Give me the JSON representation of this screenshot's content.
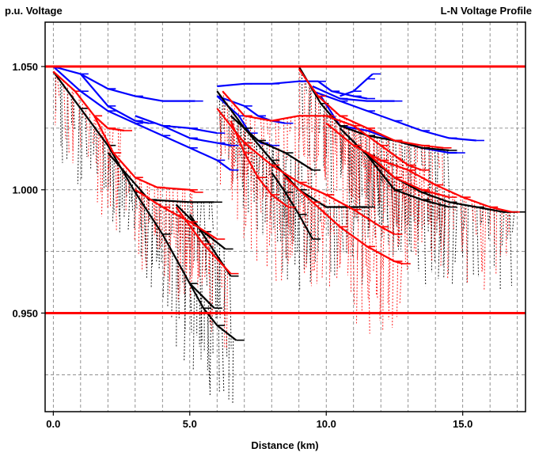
{
  "chart_data": {
    "type": "line",
    "title": "L-N Voltage Profile",
    "ylabel": "p.u. Voltage",
    "xlabel": "Distance (km)",
    "xlim": [
      -0.3,
      17.3
    ],
    "ylim": [
      0.91,
      1.068
    ],
    "x_ticks": [
      {
        "value": 0,
        "label": "0.0"
      },
      {
        "value": 5,
        "label": "5.0"
      },
      {
        "value": 10,
        "label": "10.0"
      },
      {
        "value": 15,
        "label": "15.0"
      }
    ],
    "y_ticks": [
      {
        "value": 0.95,
        "label": "0.950"
      },
      {
        "value": 1.0,
        "label": "1.000"
      },
      {
        "value": 1.05,
        "label": "1.050"
      }
    ],
    "grid": true,
    "limit_lines": [
      {
        "value": 1.05,
        "color": "#ff0000"
      },
      {
        "value": 0.95,
        "color": "#ff0000"
      }
    ],
    "series": [
      {
        "color": "#000000",
        "style": "solid",
        "points": [
          [
            0.0,
            1.048
          ],
          [
            1.0,
            1.033
          ],
          [
            2.0,
            1.018
          ],
          [
            3.0,
            0.999
          ],
          [
            4.0,
            0.982
          ],
          [
            5.0,
            0.962
          ],
          [
            5.5,
            0.952
          ],
          [
            6.0,
            0.945
          ],
          [
            6.7,
            0.939
          ]
        ]
      },
      {
        "color": "#000000",
        "style": "solid",
        "points": [
          [
            2.0,
            1.015
          ],
          [
            3.5,
            0.996
          ],
          [
            5.0,
            0.995
          ],
          [
            5.9,
            0.995
          ]
        ]
      },
      {
        "color": "#000000",
        "style": "solid",
        "points": [
          [
            4.5,
            0.994
          ],
          [
            5.5,
            0.983
          ],
          [
            6.3,
            0.976
          ]
        ]
      },
      {
        "color": "#000000",
        "style": "solid",
        "points": [
          [
            5.0,
            0.99
          ],
          [
            6.5,
            0.965
          ]
        ]
      },
      {
        "color": "#000000",
        "style": "solid",
        "points": [
          [
            5.0,
            0.962
          ],
          [
            5.9,
            0.952
          ]
        ]
      },
      {
        "color": "#ff0000",
        "style": "solid",
        "points": [
          [
            0.0,
            1.048
          ],
          [
            0.8,
            1.04
          ],
          [
            1.5,
            1.03
          ],
          [
            2.0,
            1.025
          ],
          [
            2.6,
            1.024
          ]
        ]
      },
      {
        "color": "#ff0000",
        "style": "solid",
        "points": [
          [
            1.5,
            1.03
          ],
          [
            2.2,
            1.015
          ],
          [
            3.0,
            1.005
          ],
          [
            3.8,
            1.001
          ],
          [
            5.0,
            1.0
          ],
          [
            5.2,
            0.999
          ]
        ]
      },
      {
        "color": "#ff0000",
        "style": "solid",
        "points": [
          [
            3.0,
            1.0
          ],
          [
            4.0,
            0.993
          ],
          [
            5.0,
            0.987
          ],
          [
            6.0,
            0.98
          ]
        ]
      },
      {
        "color": "#ff0000",
        "style": "solid",
        "points": [
          [
            4.5,
            0.993
          ],
          [
            5.5,
            0.978
          ],
          [
            6.5,
            0.966
          ]
        ]
      },
      {
        "color": "#0000ff",
        "style": "solid",
        "points": [
          [
            0.0,
            1.05
          ],
          [
            1.0,
            1.047
          ],
          [
            2.0,
            1.041
          ],
          [
            3.0,
            1.038
          ],
          [
            4.0,
            1.036
          ],
          [
            5.2,
            1.036
          ]
        ]
      },
      {
        "color": "#0000ff",
        "style": "solid",
        "points": [
          [
            1.0,
            1.047
          ],
          [
            2.0,
            1.034
          ],
          [
            3.0,
            1.028
          ],
          [
            3.5,
            1.027
          ]
        ]
      },
      {
        "color": "#0000ff",
        "style": "solid",
        "points": [
          [
            0.0,
            1.05
          ],
          [
            1.0,
            1.04
          ],
          [
            2.0,
            1.032
          ],
          [
            3.0,
            1.027
          ],
          [
            4.0,
            1.022
          ],
          [
            5.0,
            1.017
          ],
          [
            6.0,
            1.012
          ],
          [
            6.5,
            1.008
          ]
        ]
      },
      {
        "color": "#0000ff",
        "style": "solid",
        "points": [
          [
            3.0,
            1.03
          ],
          [
            4.0,
            1.026
          ],
          [
            5.0,
            1.025
          ],
          [
            6.0,
            1.023
          ]
        ]
      },
      {
        "color": "#0000ff",
        "style": "solid",
        "points": [
          [
            4.0,
            1.026
          ],
          [
            5.0,
            1.021
          ],
          [
            6.0,
            1.019
          ],
          [
            6.5,
            1.018
          ]
        ]
      },
      {
        "color": "#0000ff",
        "style": "solid",
        "points": [
          [
            6.0,
            1.042
          ],
          [
            7.0,
            1.043
          ],
          [
            8.0,
            1.043
          ],
          [
            9.0,
            1.044
          ],
          [
            9.7,
            1.044
          ],
          [
            10.2,
            1.04
          ],
          [
            11.0,
            1.038
          ],
          [
            11.5,
            1.037
          ]
        ]
      },
      {
        "color": "#0000ff",
        "style": "solid",
        "points": [
          [
            9.5,
            1.042
          ],
          [
            10.5,
            1.037
          ],
          [
            11.5,
            1.036
          ],
          [
            12.5,
            1.036
          ]
        ]
      },
      {
        "color": "#0000ff",
        "style": "solid",
        "points": [
          [
            9.5,
            1.04
          ],
          [
            10.5,
            1.036
          ],
          [
            11.5,
            1.032
          ],
          [
            12.5,
            1.028
          ],
          [
            13.5,
            1.024
          ],
          [
            14.5,
            1.021
          ],
          [
            15.5,
            1.02
          ]
        ]
      },
      {
        "color": "#0000ff",
        "style": "solid",
        "points": [
          [
            9.8,
            1.038
          ],
          [
            10.5,
            1.026
          ],
          [
            11.5,
            1.024
          ],
          [
            12.5,
            1.02
          ],
          [
            13.5,
            1.017
          ],
          [
            14.5,
            1.015
          ],
          [
            14.8,
            1.015
          ]
        ]
      },
      {
        "color": "#0000ff",
        "style": "solid",
        "points": [
          [
            10.5,
            1.038
          ],
          [
            11.0,
            1.04
          ],
          [
            11.5,
            1.045
          ],
          [
            11.7,
            1.047
          ]
        ]
      },
      {
        "color": "#0000ff",
        "style": "solid",
        "points": [
          [
            6.0,
            1.038
          ],
          [
            7.0,
            1.034
          ],
          [
            7.5,
            1.03
          ],
          [
            8.0,
            1.028
          ],
          [
            8.5,
            1.027
          ]
        ]
      },
      {
        "color": "#0000ff",
        "style": "solid",
        "points": [
          [
            6.0,
            1.038
          ],
          [
            6.8,
            1.03
          ],
          [
            7.2,
            1.023
          ],
          [
            7.6,
            1.019
          ],
          [
            8.0,
            1.018
          ]
        ]
      },
      {
        "color": "#000000",
        "style": "solid",
        "points": [
          [
            9.0,
            1.05
          ],
          [
            9.8,
            1.035
          ],
          [
            10.5,
            1.026
          ],
          [
            11.5,
            1.022
          ],
          [
            12.5,
            1.02
          ],
          [
            13.5,
            1.017
          ],
          [
            14.5,
            1.016
          ]
        ]
      },
      {
        "color": "#000000",
        "style": "solid",
        "points": [
          [
            10.5,
            1.025
          ],
          [
            11.5,
            1.014
          ],
          [
            12.5,
            1.005
          ],
          [
            13.5,
            0.999
          ],
          [
            14.5,
            0.995
          ],
          [
            15.5,
            0.993
          ],
          [
            16.5,
            0.991
          ],
          [
            17.0,
            0.991
          ]
        ]
      },
      {
        "color": "#000000",
        "style": "solid",
        "points": [
          [
            11.5,
            1.014
          ],
          [
            12.5,
            1.0
          ],
          [
            13.5,
            0.996
          ],
          [
            14.5,
            0.993
          ]
        ]
      },
      {
        "color": "#000000",
        "style": "solid",
        "points": [
          [
            6.0,
            1.04
          ],
          [
            7.0,
            1.025
          ],
          [
            8.0,
            1.012
          ],
          [
            9.0,
            1.0
          ],
          [
            10.0,
            0.993
          ],
          [
            11.0,
            0.993
          ],
          [
            11.5,
            0.993
          ]
        ]
      },
      {
        "color": "#000000",
        "style": "solid",
        "points": [
          [
            8.0,
            1.007
          ],
          [
            8.5,
            0.999
          ],
          [
            9.0,
            0.99
          ],
          [
            9.5,
            0.98
          ]
        ]
      },
      {
        "color": "#000000",
        "style": "solid",
        "points": [
          [
            6.5,
            1.03
          ],
          [
            7.5,
            1.02
          ],
          [
            8.5,
            1.015
          ],
          [
            9.5,
            1.008
          ]
        ]
      },
      {
        "color": "#ff0000",
        "style": "solid",
        "points": [
          [
            9.0,
            1.049
          ],
          [
            9.7,
            1.038
          ],
          [
            10.5,
            1.03
          ],
          [
            11.5,
            1.025
          ],
          [
            12.5,
            1.02
          ],
          [
            13.5,
            1.018
          ],
          [
            14.3,
            1.017
          ]
        ]
      },
      {
        "color": "#ff0000",
        "style": "solid",
        "points": [
          [
            10.0,
            1.027
          ],
          [
            11.0,
            1.018
          ],
          [
            12.0,
            1.012
          ],
          [
            13.0,
            1.008
          ],
          [
            14.0,
            1.002
          ],
          [
            15.0,
            0.997
          ],
          [
            16.0,
            0.993
          ],
          [
            16.8,
            0.991
          ]
        ]
      },
      {
        "color": "#ff0000",
        "style": "solid",
        "points": [
          [
            6.2,
            1.04
          ],
          [
            7.0,
            1.03
          ],
          [
            8.0,
            1.028
          ],
          [
            9.0,
            1.03
          ],
          [
            10.0,
            1.03
          ],
          [
            11.0,
            1.026
          ],
          [
            12.0,
            1.018
          ],
          [
            13.0,
            1.01
          ],
          [
            13.5,
            1.008
          ]
        ]
      },
      {
        "color": "#ff0000",
        "style": "solid",
        "points": [
          [
            6.0,
            1.033
          ],
          [
            7.0,
            1.019
          ],
          [
            8.0,
            1.01
          ],
          [
            9.0,
            1.003
          ],
          [
            10.0,
            0.998
          ],
          [
            11.0,
            0.992
          ],
          [
            12.0,
            0.985
          ],
          [
            12.5,
            0.982
          ]
        ]
      },
      {
        "color": "#ff0000",
        "style": "solid",
        "points": [
          [
            8.5,
            1.005
          ],
          [
            9.5,
            0.995
          ],
          [
            10.5,
            0.985
          ],
          [
            11.5,
            0.977
          ],
          [
            12.5,
            0.971
          ],
          [
            12.8,
            0.97
          ]
        ]
      },
      {
        "color": "#ff0000",
        "style": "solid",
        "points": [
          [
            11.5,
            1.015
          ],
          [
            12.5,
            1.005
          ],
          [
            13.5,
            1.0
          ],
          [
            14.5,
            0.997
          ]
        ]
      },
      {
        "color": "#ff0000",
        "style": "solid",
        "points": [
          [
            6.5,
            1.028
          ],
          [
            7.0,
            1.015
          ],
          [
            7.5,
            1.005
          ],
          [
            8.0,
            0.998
          ],
          [
            8.6,
            0.993
          ]
        ]
      }
    ]
  }
}
